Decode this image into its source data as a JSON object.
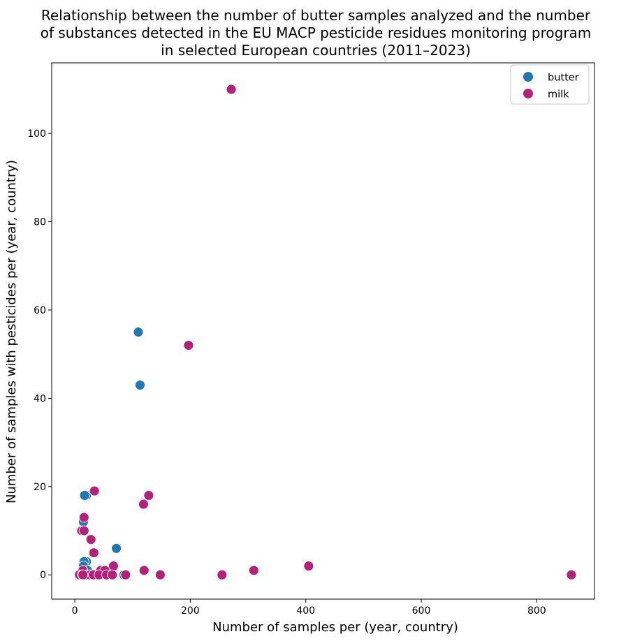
{
  "chart_data": {
    "type": "scatter",
    "title_lines": [
      "Relationship between the number of butter samples analyzed and the number",
      "of substances detected in the EU MACP pesticide residues monitoring program",
      "in selected European countries (2011–2023)"
    ],
    "xlabel": "Number of samples per (year, country)",
    "ylabel": "Number of samples with pesticides per (year, country)",
    "xlim": [
      -40,
      900
    ],
    "ylim": [
      -5.5,
      116
    ],
    "xticks": [
      0,
      200,
      400,
      600,
      800
    ],
    "yticks": [
      0,
      20,
      40,
      60,
      80,
      100
    ],
    "grid": false,
    "legend_position": "top-right",
    "series": [
      {
        "name": "butter",
        "color": "#1f77b4",
        "points": [
          {
            "x": 110,
            "y": 55
          },
          {
            "x": 113,
            "y": 43
          },
          {
            "x": 20,
            "y": 18
          },
          {
            "x": 17,
            "y": 18
          },
          {
            "x": 15,
            "y": 12
          },
          {
            "x": 72,
            "y": 6
          },
          {
            "x": 20,
            "y": 3
          },
          {
            "x": 16,
            "y": 3
          },
          {
            "x": 15,
            "y": 2
          },
          {
            "x": 14,
            "y": 1
          },
          {
            "x": 22,
            "y": 1
          },
          {
            "x": 12,
            "y": 0
          },
          {
            "x": 18,
            "y": 0
          },
          {
            "x": 25,
            "y": 0
          },
          {
            "x": 30,
            "y": 0
          },
          {
            "x": 38,
            "y": 0
          },
          {
            "x": 52,
            "y": 0
          },
          {
            "x": 64,
            "y": 0
          },
          {
            "x": 85,
            "y": 0
          },
          {
            "x": 8,
            "y": 0
          }
        ]
      },
      {
        "name": "milk",
        "color": "#b5207a",
        "points": [
          {
            "x": 271,
            "y": 110
          },
          {
            "x": 197,
            "y": 52
          },
          {
            "x": 34,
            "y": 19
          },
          {
            "x": 128,
            "y": 18
          },
          {
            "x": 119,
            "y": 16
          },
          {
            "x": 16,
            "y": 13
          },
          {
            "x": 12,
            "y": 10
          },
          {
            "x": 16,
            "y": 10
          },
          {
            "x": 28,
            "y": 8
          },
          {
            "x": 33,
            "y": 5
          },
          {
            "x": 67,
            "y": 2
          },
          {
            "x": 405,
            "y": 2
          },
          {
            "x": 45,
            "y": 1
          },
          {
            "x": 52,
            "y": 1
          },
          {
            "x": 120,
            "y": 1
          },
          {
            "x": 310,
            "y": 1
          },
          {
            "x": 14,
            "y": 1
          },
          {
            "x": 8,
            "y": 0
          },
          {
            "x": 13,
            "y": 0
          },
          {
            "x": 20,
            "y": 0
          },
          {
            "x": 26,
            "y": 0
          },
          {
            "x": 32,
            "y": 0
          },
          {
            "x": 42,
            "y": 0
          },
          {
            "x": 55,
            "y": 0
          },
          {
            "x": 65,
            "y": 0
          },
          {
            "x": 88,
            "y": 0
          },
          {
            "x": 148,
            "y": 0
          },
          {
            "x": 255,
            "y": 0
          },
          {
            "x": 860,
            "y": 0
          },
          {
            "x": 14,
            "y": 0
          }
        ]
      }
    ]
  }
}
